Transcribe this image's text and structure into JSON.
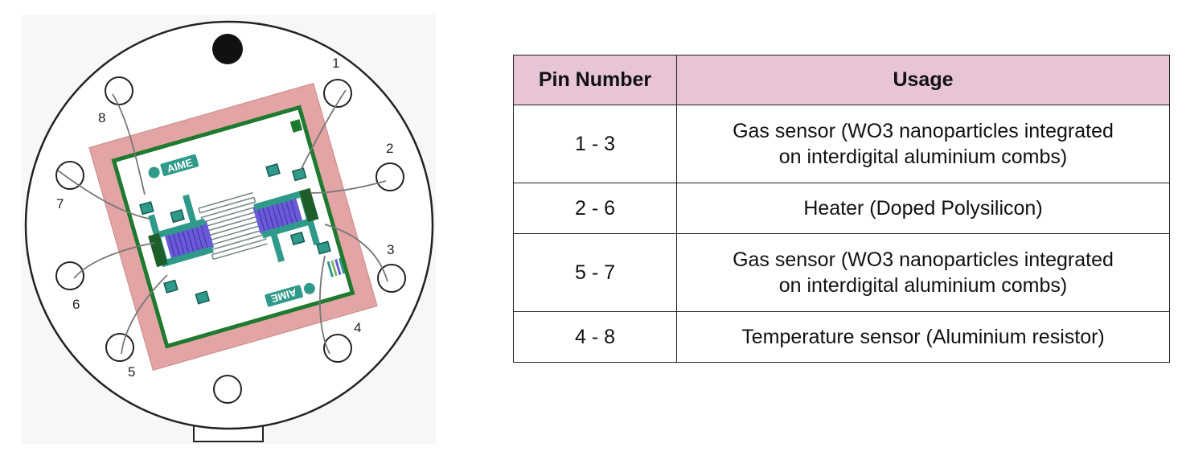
{
  "diagram": {
    "chip_logo": "AIME",
    "pin_labels": [
      "1",
      "2",
      "3",
      "4",
      "5",
      "6",
      "7",
      "8"
    ]
  },
  "table": {
    "headers": [
      "Pin Number",
      "Usage"
    ],
    "rows": [
      {
        "pins": "1 - 3",
        "usage_line1": "Gas sensor (WO3 nanoparticles integrated",
        "usage_line2": "on interdigital aluminium combs)"
      },
      {
        "pins": "2 - 6",
        "usage_line1": "Heater (Doped Polysilicon)",
        "usage_line2": ""
      },
      {
        "pins": "5 - 7",
        "usage_line1": "Gas sensor (WO3 nanoparticles integrated",
        "usage_line2": "on interdigital aluminium combs)"
      },
      {
        "pins": "4 - 8",
        "usage_line1": "Temperature sensor (Aluminium resistor)",
        "usage_line2": ""
      }
    ]
  },
  "colors": {
    "header_bg": "#e7c4d6",
    "substrate_pink": "#e2a4a4",
    "chip_border_green": "#1e7a2e",
    "pad_teal": "#2f9a8a",
    "sensor_blue": "#6a5ad8"
  }
}
